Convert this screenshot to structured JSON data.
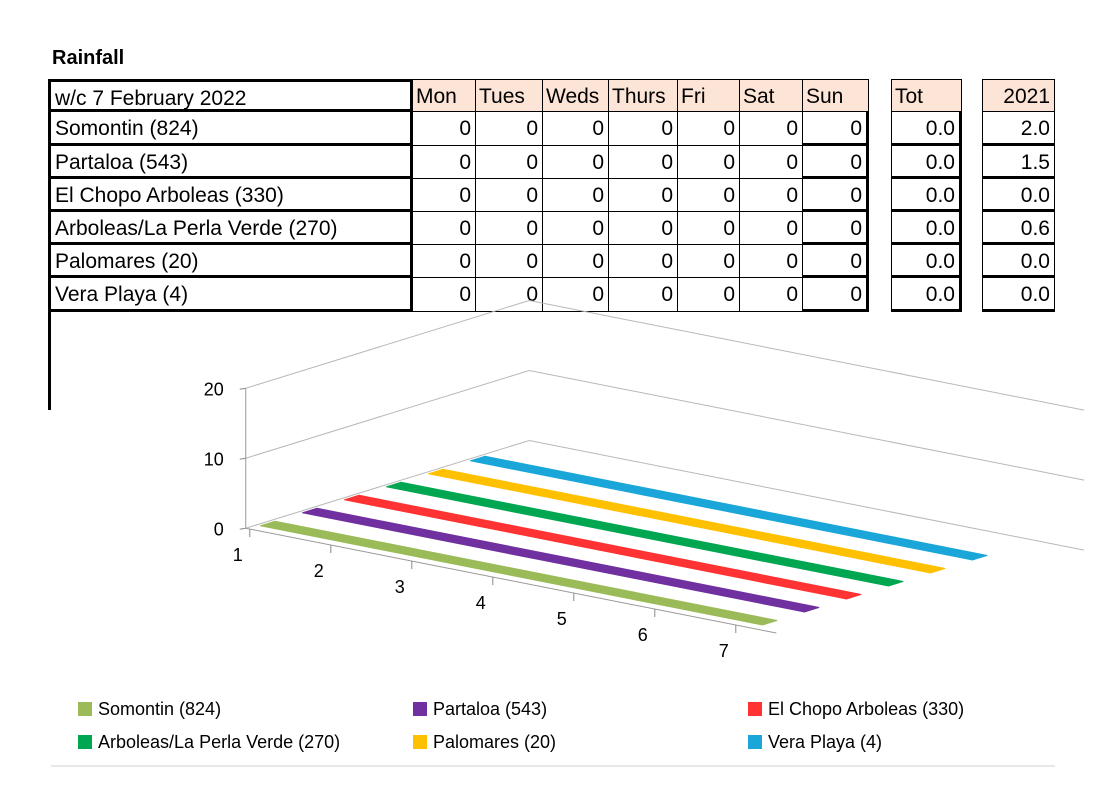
{
  "title": "Rainfall",
  "table": {
    "week_label": "w/c 7 February 2022",
    "days": [
      "Mon",
      "Tues",
      "Weds",
      "Thurs",
      "Fri",
      "Sat",
      "Sun"
    ],
    "total_label": "Tot",
    "year_label": "2021",
    "rows": [
      {
        "station": "Somontin (824)",
        "daily": [
          "0",
          "0",
          "0",
          "0",
          "0",
          "0",
          "0"
        ],
        "total": "0.0",
        "year": "2.0"
      },
      {
        "station": "Partaloa (543)",
        "daily": [
          "0",
          "0",
          "0",
          "0",
          "0",
          "0",
          "0"
        ],
        "total": "0.0",
        "year": "1.5"
      },
      {
        "station": "El Chopo Arboleas (330)",
        "daily": [
          "0",
          "0",
          "0",
          "0",
          "0",
          "0",
          "0"
        ],
        "total": "0.0",
        "year": "0.0"
      },
      {
        "station": "Arboleas/La Perla Verde (270)",
        "daily": [
          "0",
          "0",
          "0",
          "0",
          "0",
          "0",
          "0"
        ],
        "total": "0.0",
        "year": "0.6"
      },
      {
        "station": "Palomares (20)",
        "daily": [
          "0",
          "0",
          "0",
          "0",
          "0",
          "0",
          "0"
        ],
        "total": "0.0",
        "year": "0.0"
      },
      {
        "station": "Vera Playa (4)",
        "daily": [
          "0",
          "0",
          "0",
          "0",
          "0",
          "0",
          "0"
        ],
        "total": "0.0",
        "year": "0.0"
      }
    ]
  },
  "chart_data": {
    "type": "area",
    "style": "3d",
    "x": [
      1,
      2,
      3,
      4,
      5,
      6,
      7
    ],
    "ylim": [
      0,
      20
    ],
    "yticks": [
      0,
      10,
      20
    ],
    "grid": true,
    "legend_position": "bottom",
    "series": [
      {
        "name": "Somontin (824)",
        "color": "#9bbb59",
        "values": [
          0,
          0,
          0,
          0,
          0,
          0,
          0
        ]
      },
      {
        "name": "Partaloa (543)",
        "color": "#7030a0",
        "values": [
          0,
          0,
          0,
          0,
          0,
          0,
          0
        ]
      },
      {
        "name": "El Chopo Arboleas (330)",
        "color": "#ff3333",
        "values": [
          0,
          0,
          0,
          0,
          0,
          0,
          0
        ]
      },
      {
        "name": "Arboleas/La Perla Verde (270)",
        "color": "#00a650",
        "values": [
          0,
          0,
          0,
          0,
          0,
          0,
          0
        ]
      },
      {
        "name": "Palomares (20)",
        "color": "#ffc000",
        "values": [
          0,
          0,
          0,
          0,
          0,
          0,
          0
        ]
      },
      {
        "name": "Vera Playa (4)",
        "color": "#1aa6d8",
        "values": [
          0,
          0,
          0,
          0,
          0,
          0,
          0
        ]
      }
    ]
  }
}
